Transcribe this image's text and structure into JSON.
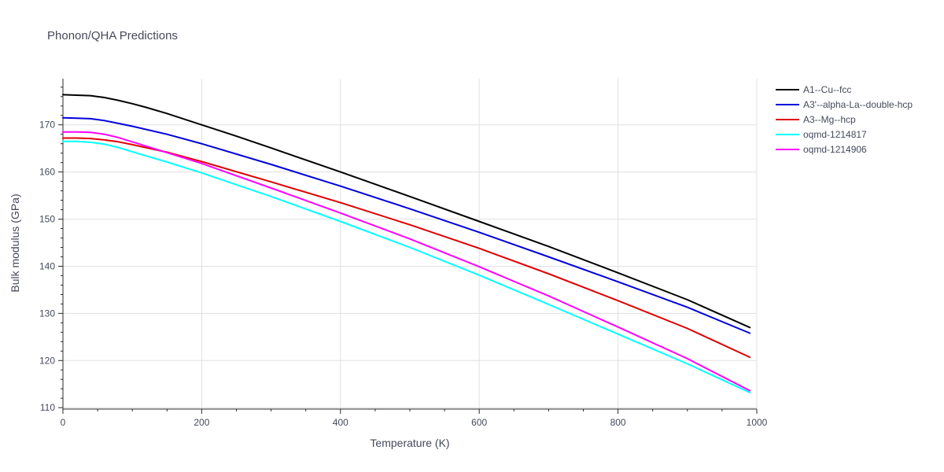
{
  "chart_data": {
    "type": "line",
    "title": "Phonon/QHA Predictions",
    "xlabel": "Temperature (K)",
    "ylabel": "Bulk modulus (GPa)",
    "xlim": [
      0,
      1000
    ],
    "ylim": [
      109.7,
      179.8
    ],
    "x_ticks": [
      0,
      200,
      400,
      600,
      800,
      1000
    ],
    "y_ticks": [
      110,
      120,
      130,
      140,
      150,
      160,
      170
    ],
    "grid": true,
    "legend_position": "top-right",
    "series": [
      {
        "name": "A1--Cu--fcc",
        "color": "#000000",
        "x": [
          0,
          20,
          40,
          60,
          80,
          100,
          120,
          150,
          200,
          250,
          300,
          400,
          500,
          600,
          700,
          800,
          900,
          990
        ],
        "y": [
          176.4,
          176.3,
          176.2,
          175.8,
          175.2,
          174.5,
          173.7,
          172.4,
          170.0,
          167.6,
          165.1,
          160.0,
          154.8,
          149.5,
          144.2,
          138.6,
          132.9,
          127.0
        ]
      },
      {
        "name": "A3'--alpha-La--double-hcp",
        "color": "#0000dd",
        "x": [
          0,
          20,
          40,
          60,
          80,
          100,
          150,
          200,
          300,
          400,
          500,
          600,
          700,
          800,
          900,
          990
        ],
        "y": [
          171.5,
          171.4,
          171.3,
          170.9,
          170.3,
          169.7,
          168.0,
          166.0,
          161.6,
          157.0,
          152.2,
          147.2,
          142.0,
          136.7,
          131.3,
          125.8
        ]
      },
      {
        "name": "A3--Mg--hcp",
        "color": "#e00000",
        "x": [
          0,
          20,
          40,
          60,
          80,
          100,
          150,
          200,
          300,
          400,
          500,
          600,
          700,
          800,
          900,
          990
        ],
        "y": [
          167.2,
          167.2,
          167.1,
          166.8,
          166.4,
          165.8,
          164.2,
          162.2,
          157.9,
          153.5,
          148.8,
          143.8,
          138.4,
          132.7,
          126.8,
          120.7
        ]
      },
      {
        "name": "oqmd-1214817",
        "color": "#00ffff",
        "x": [
          0,
          20,
          40,
          60,
          80,
          100,
          150,
          200,
          300,
          400,
          500,
          600,
          700,
          800,
          900,
          990
        ],
        "y": [
          166.5,
          166.5,
          166.3,
          165.9,
          165.2,
          164.3,
          162.1,
          159.8,
          154.8,
          149.5,
          144.0,
          138.1,
          131.9,
          125.6,
          119.3,
          113.2
        ]
      },
      {
        "name": "oqmd-1214906",
        "color": "#ff00ff",
        "x": [
          0,
          20,
          40,
          60,
          80,
          100,
          150,
          200,
          300,
          400,
          500,
          600,
          700,
          800,
          900,
          990
        ],
        "y": [
          168.5,
          168.5,
          168.4,
          168.0,
          167.3,
          166.4,
          164.1,
          161.8,
          156.6,
          151.3,
          145.8,
          139.9,
          133.7,
          127.1,
          120.4,
          113.6
        ]
      }
    ]
  }
}
